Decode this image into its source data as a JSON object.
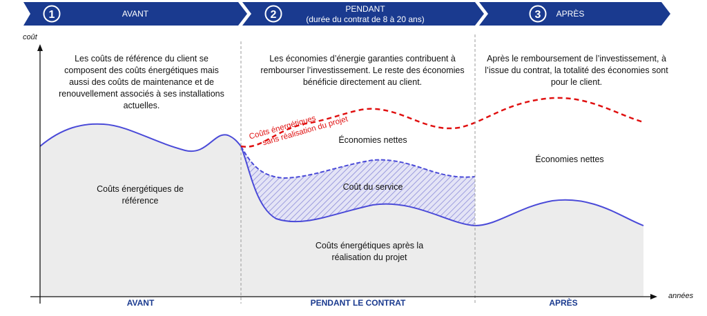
{
  "header": {
    "phases": [
      {
        "number": "1",
        "title": "AVANT",
        "subtitle": ""
      },
      {
        "number": "2",
        "title": "PENDANT",
        "subtitle": "(durée du contrat de 8 à 20 ans)"
      },
      {
        "number": "3",
        "title": "APRÈS",
        "subtitle": ""
      }
    ]
  },
  "axes": {
    "y_label": "coût",
    "x_label": "années"
  },
  "descriptions": {
    "avant": "Les coûts de référence du client se composent des coûts énergétiques mais aussi des coûts de maintenance et de renouvellement associés à ses installations actuelles.",
    "pendant": "Les économies d’énergie garanties contribuent à rembourser l’investissement. Le reste des économies bénéficie directement au client.",
    "apres": "Après le remboursement de l’investissement, à l’issue du contrat, la totalité des économies sont pour le client."
  },
  "regions": {
    "reference": "Coûts énergétiques de référence",
    "net_savings_during": "Économies nettes",
    "service_cost": "Coût du service",
    "after_costs": "Coûts énergétiques après la réalisation du projet",
    "net_savings_after": "Économies nettes"
  },
  "annotation": {
    "line1": "Coûts énergétiques",
    "line2": "sans réalisation du projet"
  },
  "bottom_axis": {
    "avant": "AVANT",
    "pendant": "PENDANT LE CONTRAT",
    "apres": "APRÈS"
  },
  "colors": {
    "primary": "#1a3a8f",
    "curve": "#4a4ad8",
    "dashed": "#e01010",
    "fill": "#ececec",
    "hatch": "#8a8ad8"
  }
}
